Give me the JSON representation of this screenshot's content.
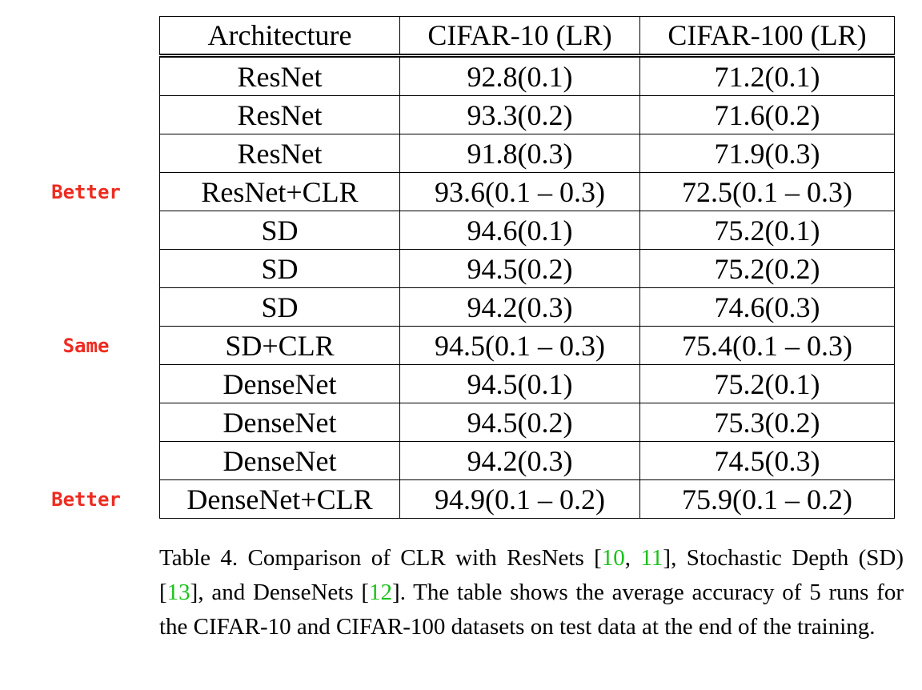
{
  "table": {
    "headers": [
      "Architecture",
      "CIFAR-10 (LR)",
      "CIFAR-100 (LR)"
    ],
    "rows": [
      [
        "ResNet",
        "92.8(0.1)",
        "71.2(0.1)"
      ],
      [
        "ResNet",
        "93.3(0.2)",
        "71.6(0.2)"
      ],
      [
        "ResNet",
        "91.8(0.3)",
        "71.9(0.3)"
      ],
      [
        "ResNet+CLR",
        "93.6(0.1 – 0.3)",
        "72.5(0.1 – 0.3)"
      ],
      [
        "SD",
        "94.6(0.1)",
        "75.2(0.1)"
      ],
      [
        "SD",
        "94.5(0.2)",
        "75.2(0.2)"
      ],
      [
        "SD",
        "94.2(0.3)",
        "74.6(0.3)"
      ],
      [
        "SD+CLR",
        "94.5(0.1 – 0.3)",
        "75.4(0.1 – 0.3)"
      ],
      [
        "DenseNet",
        "94.5(0.1)",
        "75.2(0.1)"
      ],
      [
        "DenseNet",
        "94.5(0.2)",
        "75.3(0.2)"
      ],
      [
        "DenseNet",
        "94.2(0.3)",
        "74.5(0.3)"
      ],
      [
        "DenseNet+CLR",
        "94.9(0.1 – 0.2)",
        "75.9(0.1 – 0.2)"
      ]
    ]
  },
  "markers": [
    {
      "row": 3,
      "text": "Better"
    },
    {
      "row": 7,
      "text": "Same"
    },
    {
      "row": 11,
      "text": "Better"
    }
  ],
  "caption": {
    "t1": "Table 4. Comparison of CLR with ResNets [",
    "r1": "10",
    "t2": ", ",
    "r2": "11",
    "t3": "], Stochastic Depth (SD) [",
    "r3": "13",
    "t4": "], and DenseNets [",
    "r4": "12",
    "t5": "]. The table shows the average accuracy of 5 runs for the CIFAR-10 and CIFAR-100 datasets on test data at the end of the training."
  },
  "colors": {
    "marker": "#ee2a1f",
    "reference": "#19c219"
  }
}
